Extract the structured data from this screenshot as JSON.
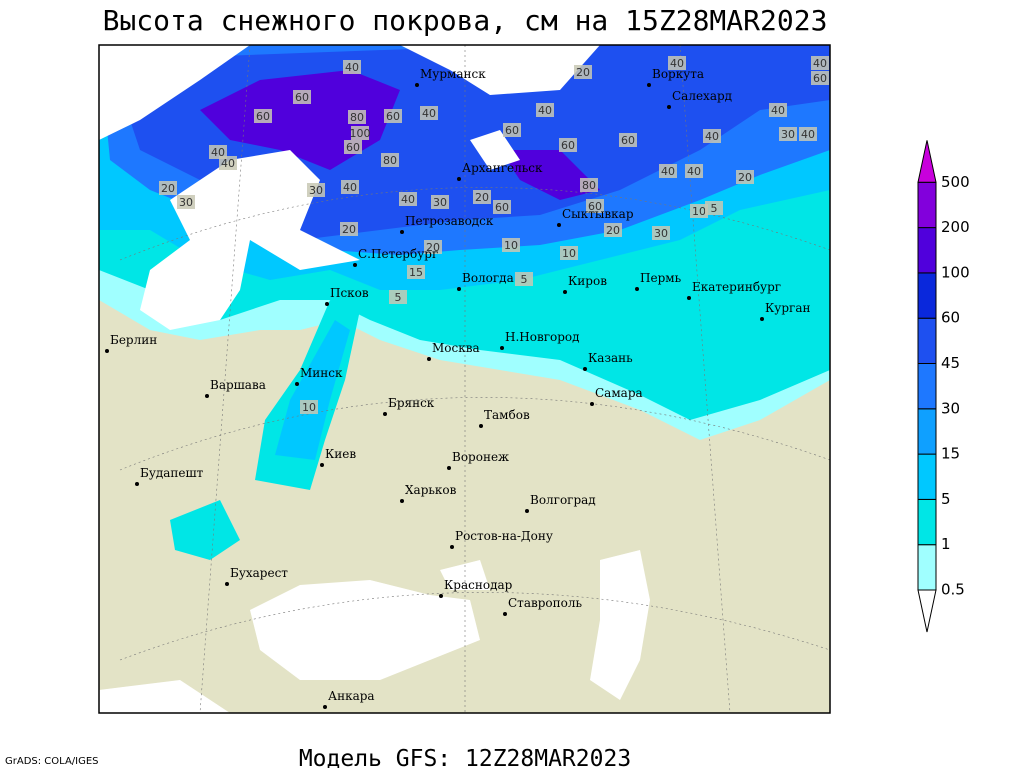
{
  "title": "Высота снежного покрова, см на 15Z28MAR2023",
  "footer": "Модель GFS: 12Z28MAR2023",
  "credit": "GrADS: COLA/IGES",
  "cities": [
    "Мурманск",
    "Воркута",
    "Салехард",
    "Архангельск",
    "Сыктывкар",
    "Петрозаводск",
    "С.Петербург",
    "Вологда",
    "Киров",
    "Пермь",
    "Екатеринбург",
    "Курган",
    "Псков",
    "Н.Новгород",
    "Москва",
    "Казань",
    "Берлин",
    "Минск",
    "Варшава",
    "Брянск",
    "Самара",
    "Тамбов",
    "Киев",
    "Воронеж",
    "Будапешт",
    "Харьков",
    "Волгоград",
    "Ростов-на-Дону",
    "Бухарест",
    "Краснодар",
    "Ставрополь",
    "Анкара"
  ],
  "contour_labels": [
    40,
    20,
    40,
    40,
    60,
    60,
    60,
    80,
    60,
    40,
    100,
    60,
    80,
    40,
    60,
    60,
    60,
    40,
    40,
    30,
    40,
    40,
    40,
    20,
    30,
    30,
    40,
    40,
    30,
    20,
    60,
    80,
    60,
    40,
    40,
    20,
    10,
    5,
    20,
    30,
    20,
    10,
    10,
    20,
    15,
    5,
    5,
    10
  ],
  "legend": {
    "levels": [
      0.5,
      1,
      5,
      15,
      30,
      45,
      60,
      100,
      200,
      500
    ],
    "colors": [
      "#ffffff",
      "#a0ffff",
      "#00e6e6",
      "#00c8ff",
      "#0fa0ff",
      "#1e78ff",
      "#1e50f0",
      "#0a28dc",
      "#5000dc",
      "#8200dc",
      "#c800dc"
    ]
  }
}
